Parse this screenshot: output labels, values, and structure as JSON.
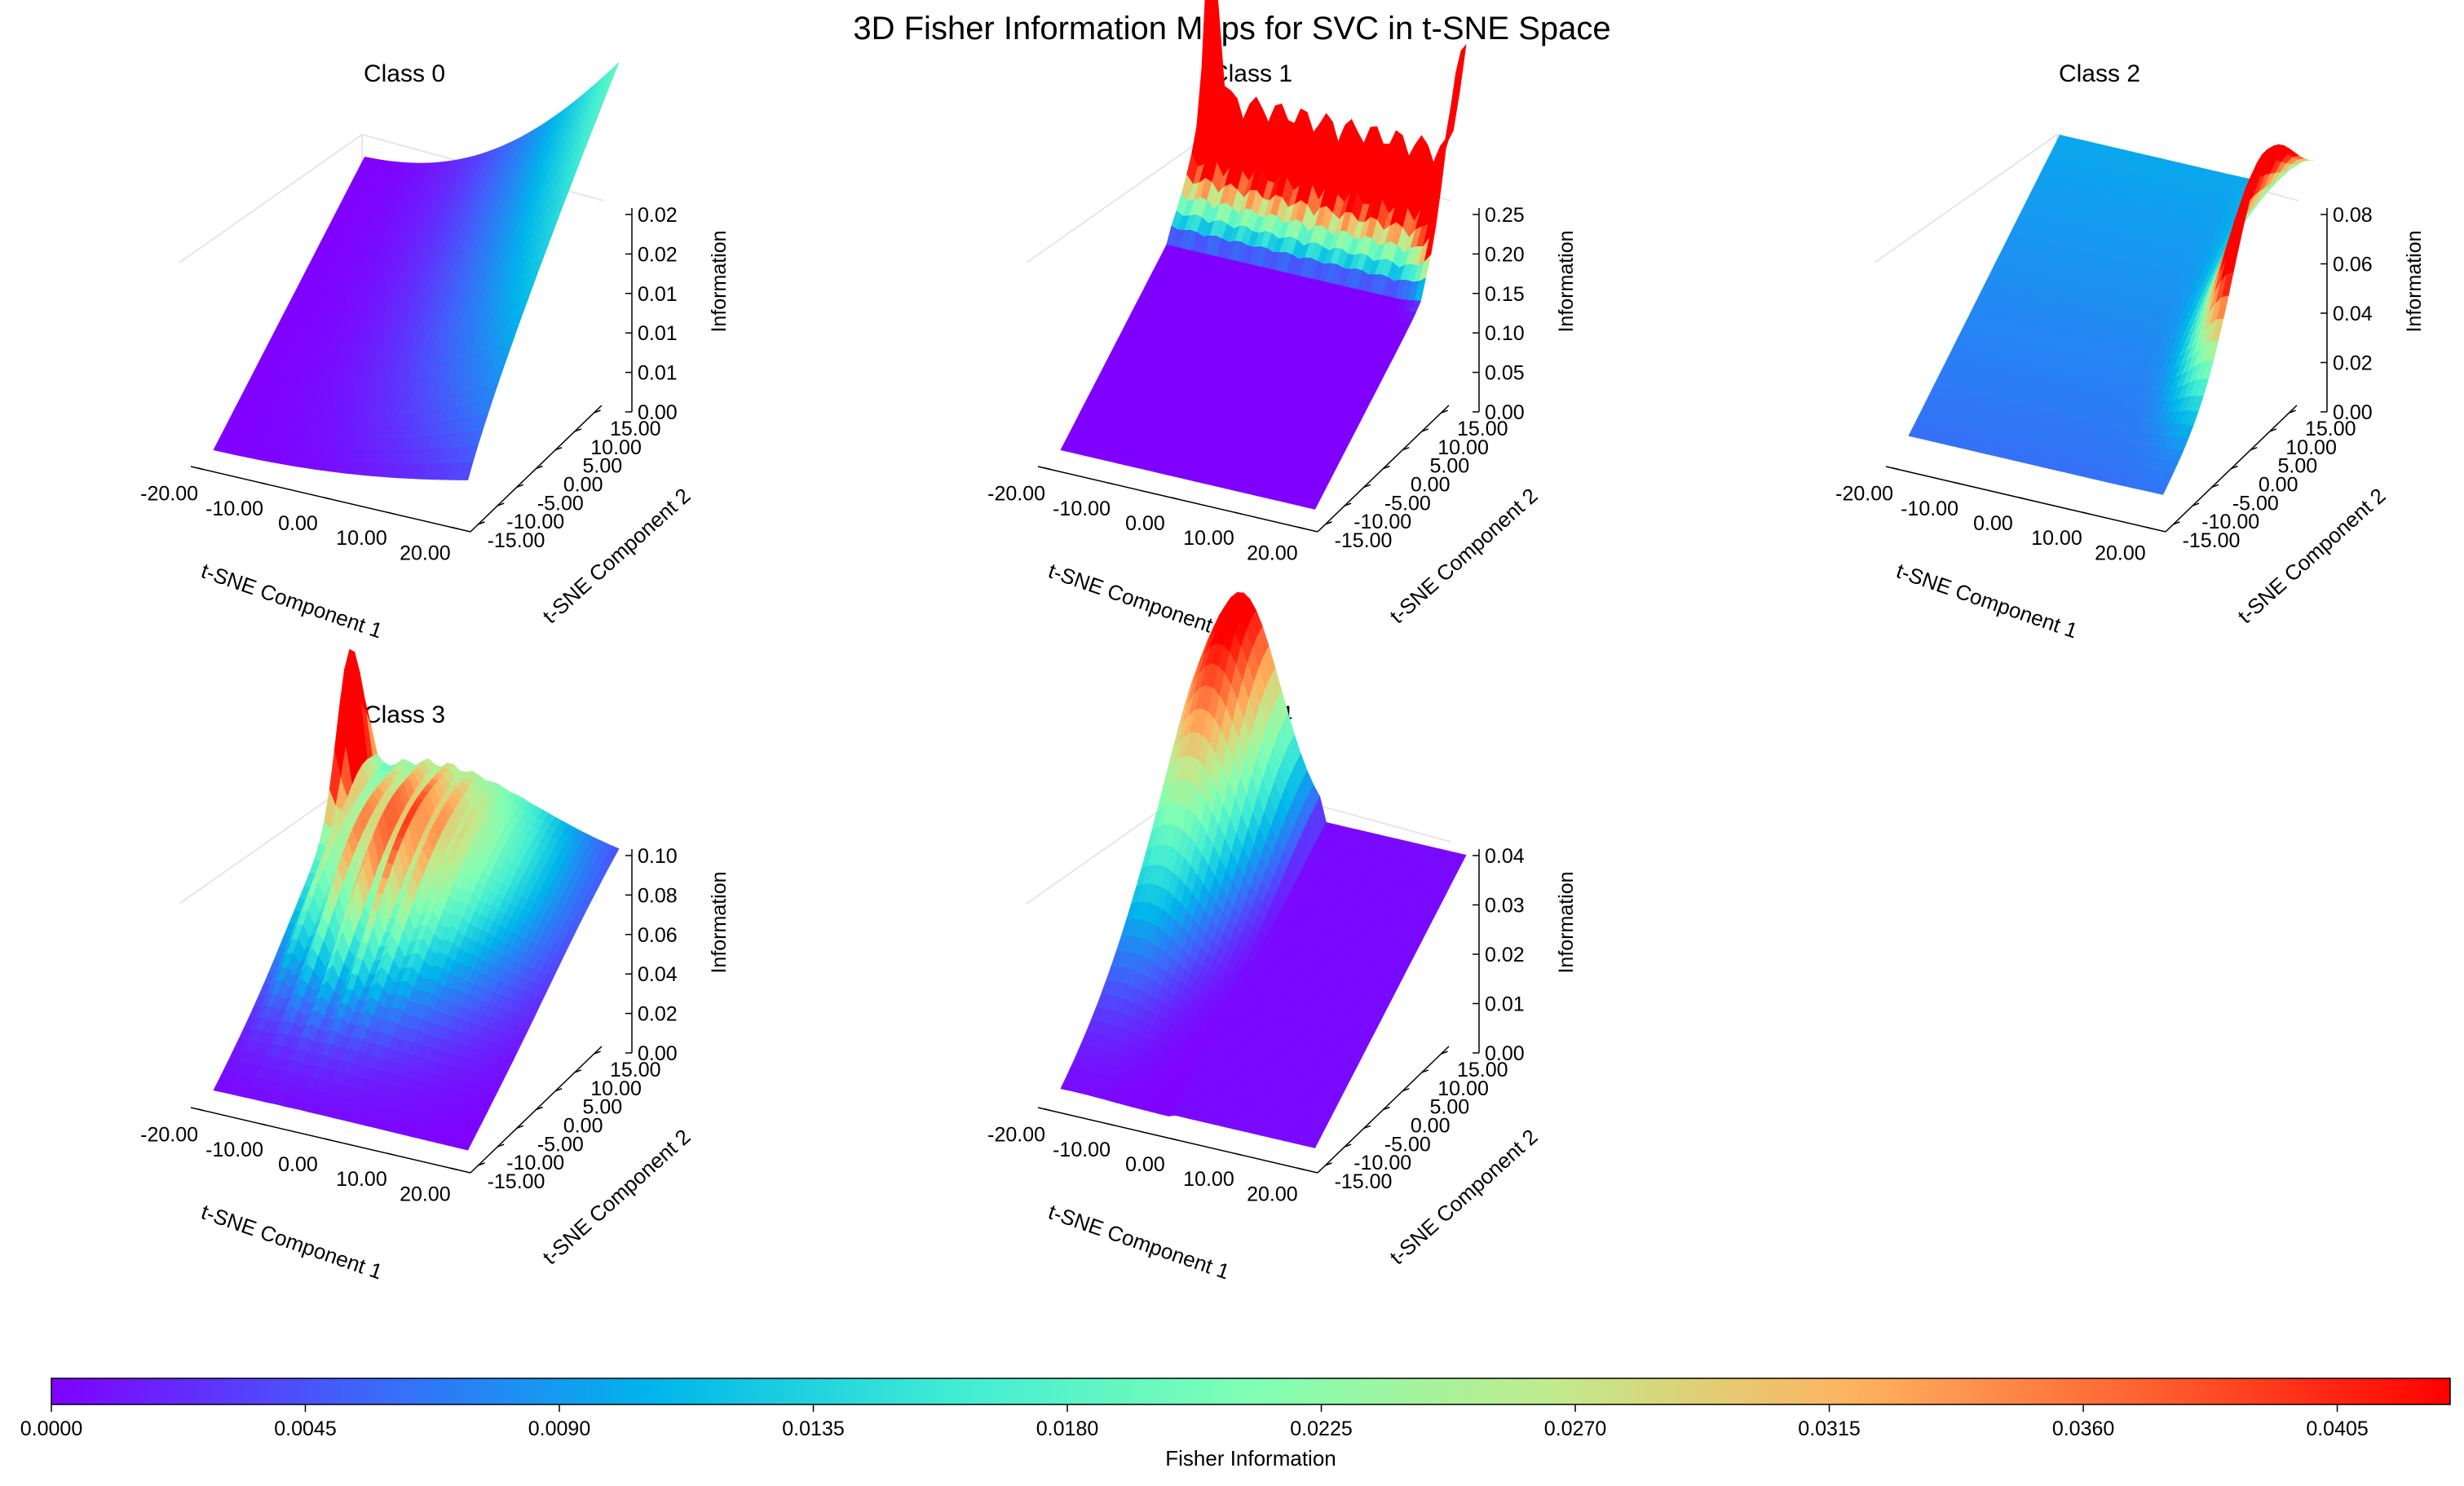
{
  "figure": {
    "title": "3D Fisher Information Maps for SVC in t-SNE Space"
  },
  "chart_data": [
    {
      "type": "surface3d",
      "title": "Class 0",
      "xlabel": "t-SNE Component 1",
      "ylabel": "t-SNE Component 2",
      "zlabel": "Information",
      "xticks": [
        "-20.00",
        "-10.00",
        "0.00",
        "10.00",
        "20.00"
      ],
      "yticks": [
        "-15.00",
        "-10.00",
        "-5.00",
        "0.00",
        "5.00",
        "10.00",
        "15.00"
      ],
      "zticks": [
        "0.00",
        "0.01",
        "0.01",
        "0.01",
        "0.02",
        "0.02"
      ],
      "xlim": [
        -22,
        22
      ],
      "ylim": [
        -17,
        17
      ],
      "zlim": [
        0,
        0.025
      ],
      "peak": {
        "value": 0.022,
        "location": "x≈20, y≈15"
      },
      "description_shape": "smooth ramp rising toward high x / high y"
    },
    {
      "type": "surface3d",
      "title": "Class 1",
      "xlabel": "t-SNE Component 1",
      "ylabel": "t-SNE Component 2",
      "zlabel": "Information",
      "xticks": [
        "-20.00",
        "-10.00",
        "0.00",
        "10.00",
        "20.00"
      ],
      "yticks": [
        "-15.00",
        "-10.00",
        "-5.00",
        "0.00",
        "5.00",
        "10.00",
        "15.00"
      ],
      "zticks": [
        "0.00",
        "0.05",
        "0.10",
        "0.15",
        "0.20",
        "0.25"
      ],
      "xlim": [
        -22,
        22
      ],
      "ylim": [
        -17,
        17
      ],
      "zlim": [
        0,
        0.26
      ],
      "peak": {
        "value": 0.25,
        "location": "x≈-20, y≈15"
      }
    },
    {
      "type": "surface3d",
      "title": "Class 2",
      "xlabel": "t-SNE Component 1",
      "ylabel": "t-SNE Component 2",
      "zlabel": "Information",
      "xticks": [
        "-20.00",
        "-10.00",
        "0.00",
        "10.00",
        "20.00"
      ],
      "yticks": [
        "-15.00",
        "-10.00",
        "-5.00",
        "0.00",
        "5.00",
        "10.00",
        "15.00"
      ],
      "zticks": [
        "0.00",
        "0.02",
        "0.04",
        "0.06",
        "0.08"
      ],
      "xlim": [
        -22,
        22
      ],
      "ylim": [
        -17,
        17
      ],
      "zlim": [
        0,
        0.09
      ],
      "peak": {
        "value": 0.06,
        "location": "x≈20, y≈5"
      }
    },
    {
      "type": "surface3d",
      "title": "Class 3",
      "xlabel": "t-SNE Component 1",
      "ylabel": "t-SNE Component 2",
      "zlabel": "Information",
      "xticks": [
        "-20.00",
        "-10.00",
        "0.00",
        "10.00",
        "20.00"
      ],
      "yticks": [
        "-15.00",
        "-10.00",
        "-5.00",
        "0.00",
        "5.00",
        "10.00",
        "15.00"
      ],
      "zticks": [
        "0.00",
        "0.02",
        "0.04",
        "0.06",
        "0.08",
        "0.10"
      ],
      "xlim": [
        -22,
        22
      ],
      "ylim": [
        -17,
        17
      ],
      "zlim": [
        0,
        0.1
      ],
      "peak": {
        "value": 0.07,
        "location": "x≈-20, y≈12"
      }
    },
    {
      "type": "surface3d",
      "title": "Class 4",
      "xlabel": "t-SNE Component 1",
      "ylabel": "t-SNE Component 2",
      "zlabel": "Information",
      "xticks": [
        "-20.00",
        "-10.00",
        "0.00",
        "10.00",
        "20.00"
      ],
      "yticks": [
        "-15.00",
        "-10.00",
        "-5.00",
        "0.00",
        "5.00",
        "10.00",
        "15.00"
      ],
      "zticks": [
        "0.00",
        "0.01",
        "0.02",
        "0.03",
        "0.04"
      ],
      "xlim": [
        -22,
        22
      ],
      "ylim": [
        -17,
        17
      ],
      "zlim": [
        0,
        0.043
      ],
      "peak": {
        "value": 0.04,
        "location": "x≈-15, y≈15"
      }
    }
  ],
  "colorbar": {
    "label": "Fisher Information",
    "colormap": "rainbow",
    "range": [
      0,
      0.0425
    ],
    "ticks": [
      "0.0000",
      "0.0045",
      "0.0090",
      "0.0135",
      "0.0180",
      "0.0225",
      "0.0270",
      "0.0315",
      "0.0360",
      "0.0405"
    ],
    "colors": [
      "#8000ff",
      "#4062fa",
      "#00b5eb",
      "#40ecd4",
      "#80ffb4",
      "#c0eb8d",
      "#ffb360",
      "#ff6030",
      "#ff0000"
    ]
  }
}
